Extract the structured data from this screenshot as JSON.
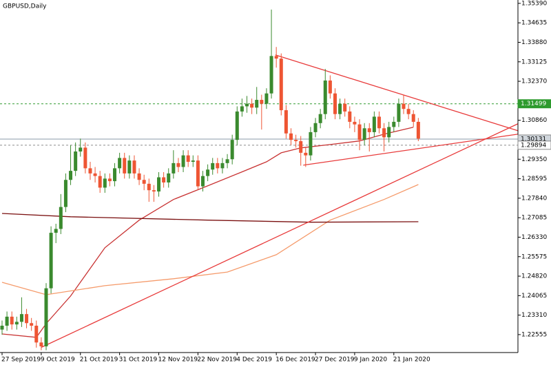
{
  "chart_data": {
    "type": "candlestick",
    "title": "GBPUSD,Daily",
    "categories": [
      "27 Sep 2019",
      null,
      null,
      null,
      null,
      null,
      null,
      null,
      "9 Oct 2019",
      null,
      null,
      null,
      null,
      null,
      null,
      null,
      "21 Oct 2019",
      null,
      null,
      null,
      null,
      null,
      null,
      null,
      "31 Oct 2019",
      null,
      null,
      null,
      null,
      null,
      null,
      null,
      "12 Nov 2019",
      null,
      null,
      null,
      null,
      null,
      null,
      null,
      "22 Nov 2019",
      null,
      null,
      null,
      null,
      null,
      null,
      null,
      "4 Dec 2019",
      null,
      null,
      null,
      null,
      null,
      null,
      null,
      "16 Dec 2019",
      null,
      null,
      null,
      null,
      null,
      null,
      null,
      "27 Dec 2019",
      null,
      null,
      null,
      null,
      null,
      null,
      null,
      "9 Jan 2020",
      null,
      null,
      null,
      null,
      null,
      null,
      null,
      "21 Jan 2020",
      null,
      null,
      null,
      null,
      null
    ],
    "open": [
      1.2275,
      1.229,
      1.2325,
      1.2295,
      1.2305,
      1.2335,
      1.23,
      1.229,
      1.2225,
      1.221,
      1.2435,
      1.265,
      1.2665,
      1.275,
      1.2855,
      1.289,
      1.2965,
      1.298,
      1.29,
      1.288,
      1.287,
      1.2825,
      1.286,
      1.285,
      1.29,
      1.294,
      1.288,
      1.293,
      1.288,
      1.2855,
      1.284,
      1.2815,
      1.281,
      1.2865,
      1.2845,
      1.288,
      1.292,
      1.2905,
      1.295,
      1.2925,
      1.293,
      1.283,
      1.287,
      1.2895,
      1.292,
      1.29,
      1.292,
      1.2935,
      1.301,
      1.312,
      1.314,
      1.315,
      1.3135,
      1.3165,
      1.315,
      1.319,
      1.3335,
      1.3325,
      1.3125,
      1.3035,
      1.301,
      1.3005,
      1.296,
      1.295,
      1.304,
      1.3075,
      1.311,
      1.324,
      1.319,
      1.311,
      1.315,
      1.312,
      1.308,
      1.307,
      1.301,
      1.3055,
      1.304,
      1.31,
      1.3055,
      1.302,
      1.306,
      1.308,
      1.315,
      1.313,
      1.311,
      1.308
    ],
    "high": [
      1.231,
      1.2345,
      1.2345,
      1.2325,
      1.24,
      1.2355,
      1.232,
      1.231,
      1.2245,
      1.2455,
      1.2675,
      1.2685,
      1.28,
      1.288,
      1.299,
      1.3,
      1.3015,
      1.3,
      1.2925,
      1.2905,
      1.289,
      1.288,
      1.288,
      1.292,
      1.296,
      1.296,
      1.295,
      1.295,
      1.29,
      1.2875,
      1.286,
      1.2835,
      1.2885,
      1.2885,
      1.29,
      1.297,
      1.294,
      1.297,
      1.297,
      1.295,
      1.295,
      1.289,
      1.2915,
      1.294,
      1.294,
      1.294,
      1.2955,
      1.303,
      1.314,
      1.317,
      1.318,
      1.317,
      1.3215,
      1.3185,
      1.321,
      1.3515,
      1.337,
      1.3345,
      1.3145,
      1.3055,
      1.303,
      1.3025,
      1.298,
      1.306,
      1.3095,
      1.313,
      1.3285,
      1.326,
      1.321,
      1.317,
      1.317,
      1.314,
      1.31,
      1.309,
      1.3075,
      1.3075,
      1.312,
      1.312,
      1.3075,
      1.308,
      1.31,
      1.317,
      1.3185,
      1.315,
      1.3125,
      1.3095
    ],
    "low": [
      1.2255,
      1.227,
      1.2275,
      1.2275,
      1.2285,
      1.228,
      1.227,
      1.2205,
      1.2195,
      1.2195,
      1.2415,
      1.261,
      1.2645,
      1.273,
      1.2835,
      1.287,
      1.2945,
      1.288,
      1.2855,
      1.2845,
      1.2805,
      1.2805,
      1.283,
      1.283,
      1.288,
      1.286,
      1.286,
      1.286,
      1.2835,
      1.2815,
      1.277,
      1.277,
      1.279,
      1.2825,
      1.2825,
      1.286,
      1.2885,
      1.2885,
      1.2905,
      1.2905,
      1.2815,
      1.281,
      1.285,
      1.2875,
      1.288,
      1.288,
      1.29,
      1.2915,
      1.299,
      1.31,
      1.3115,
      1.311,
      1.311,
      1.305,
      1.313,
      1.317,
      1.329,
      1.3105,
      1.3015,
      1.299,
      1.298,
      1.291,
      1.2905,
      1.293,
      1.302,
      1.3055,
      1.309,
      1.317,
      1.309,
      1.309,
      1.31,
      1.3055,
      1.304,
      1.297,
      1.299,
      1.2965,
      1.302,
      1.3035,
      1.2965,
      1.3,
      1.304,
      1.306,
      1.311,
      1.309,
      1.306,
      1.3005
    ],
    "close": [
      1.229,
      1.2325,
      1.2295,
      1.2305,
      1.2335,
      1.23,
      1.229,
      1.2225,
      1.221,
      1.2435,
      1.265,
      1.2665,
      1.275,
      1.2855,
      1.289,
      1.2965,
      1.298,
      1.29,
      1.288,
      1.287,
      1.2825,
      1.286,
      1.285,
      1.29,
      1.294,
      1.288,
      1.293,
      1.288,
      1.2855,
      1.284,
      1.2815,
      1.281,
      1.2865,
      1.2845,
      1.288,
      1.292,
      1.2905,
      1.295,
      1.2925,
      1.293,
      1.283,
      1.287,
      1.2895,
      1.292,
      1.29,
      1.292,
      1.2935,
      1.301,
      1.312,
      1.314,
      1.315,
      1.3135,
      1.3165,
      1.315,
      1.319,
      1.3335,
      1.3325,
      1.3125,
      1.3035,
      1.301,
      1.3005,
      1.296,
      1.295,
      1.304,
      1.3075,
      1.311,
      1.324,
      1.319,
      1.311,
      1.315,
      1.312,
      1.308,
      1.307,
      1.301,
      1.3055,
      1.304,
      1.31,
      1.3055,
      1.302,
      1.306,
      1.308,
      1.315,
      1.313,
      1.311,
      1.308,
      1.3015
    ],
    "up_color": "#3a8a2e",
    "down_color": "#ee5533",
    "ylim": [
      1.2186,
      1.3552
    ],
    "yticks": [
      {
        "value": 1.3539,
        "label": "1.35390"
      },
      1.34635,
      {
        "value": 1.3388,
        "label": "1.33880"
      },
      1.33125,
      {
        "value": 1.3237,
        "label": "1.32370"
      },
      {
        "value": 1.3086,
        "label": "1.30860"
      },
      {
        "value": 1.2935,
        "label": "1.29350"
      },
      1.28595,
      {
        "value": 1.2784,
        "label": "1.27840"
      },
      1.27085,
      {
        "value": 1.2633,
        "label": "1.26330"
      },
      1.25575,
      {
        "value": 1.2482,
        "label": "1.24820"
      },
      1.24065,
      {
        "value": 1.2331,
        "label": "1.23310"
      },
      1.22555
    ],
    "levels": [
      {
        "value": 1.31499,
        "color": "#2e9a2e",
        "dashed": true
      },
      {
        "value": 1.30131,
        "color": "#8a9aa8",
        "dashed": false
      },
      {
        "value": 1.29894,
        "color": "#8a8a8a",
        "dashed": true
      }
    ],
    "overlays": [
      {
        "color": "#c83232",
        "x": [
          0,
          7,
          9,
          14,
          21,
          28,
          35,
          42,
          49,
          54,
          57,
          61,
          67,
          73,
          78,
          84
        ],
        "values": [
          1.2258,
          1.2245,
          1.2298,
          1.2405,
          1.2592,
          1.2699,
          1.2779,
          1.2832,
          1.2886,
          1.2925,
          1.296,
          1.2979,
          1.2992,
          1.3006,
          1.3032,
          1.3059
        ]
      },
      {
        "color": "#f59a6a",
        "x": [
          0,
          9,
          21,
          35,
          46,
          56,
          67,
          78,
          85
        ],
        "values": [
          1.2458,
          1.241,
          1.2445,
          1.2472,
          1.2498,
          1.2565,
          1.2699,
          1.2779,
          1.2837
        ]
      },
      {
        "color": "#7a0f0f",
        "x": [
          0,
          14,
          42,
          63,
          85
        ],
        "values": [
          1.2725,
          1.2712,
          1.2699,
          1.2691,
          1.2693
        ]
      }
    ],
    "trendlines": [
      {
        "color": "#e83a3a",
        "x": [
          55.8,
          105.3
        ],
        "values": [
          1.3339,
          1.3046
        ]
      },
      {
        "color": "#e83a3a",
        "x": [
          61.5,
          105.3
        ],
        "values": [
          1.2912,
          1.3032
        ]
      },
      {
        "color": "#e83a3a",
        "x": [
          8,
          105.3
        ],
        "values": [
          1.2206,
          1.3072
        ]
      }
    ]
  }
}
